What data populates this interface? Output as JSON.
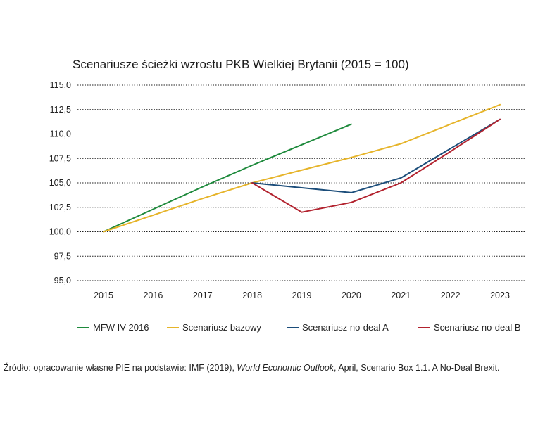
{
  "chart_data": {
    "type": "line",
    "title": "Scenariusze ścieżki wzrostu PKB Wielkiej Brytanii (2015 = 100)",
    "xlabel": "",
    "ylabel": "",
    "categories": [
      "2015",
      "2016",
      "2017",
      "2018",
      "2019",
      "2020",
      "2021",
      "2022",
      "2023"
    ],
    "y_ticks": [
      "115,0",
      "112,5",
      "110,0",
      "107,5",
      "105,0",
      "102,5",
      "100,0",
      "97,5",
      "95,0"
    ],
    "ylim": [
      95,
      115
    ],
    "grid": "horizontal dotted",
    "legend_position": "bottom",
    "series": [
      {
        "name": "MFW IV 2016",
        "color": "#1e8a3c",
        "values": [
          100.0,
          102.3,
          104.6,
          106.8,
          108.9,
          111.0,
          null,
          null,
          null
        ]
      },
      {
        "name": "Scenariusz bazowy",
        "color": "#e6b42a",
        "values": [
          100.0,
          101.7,
          103.4,
          105.0,
          106.3,
          107.6,
          109.0,
          111.0,
          113.0
        ]
      },
      {
        "name": "Scenariusz no-deal A",
        "color": "#1b4d7a",
        "values": [
          null,
          null,
          null,
          105.0,
          104.5,
          104.0,
          105.5,
          108.5,
          111.5
        ]
      },
      {
        "name": "Scenariusz no-deal B",
        "color": "#b2222e",
        "values": [
          null,
          null,
          null,
          105.0,
          102.0,
          103.0,
          105.0,
          108.2,
          111.5
        ]
      }
    ]
  },
  "source": {
    "prefix": "Źródło: opracowanie własne PIE na podstawie: IMF (2019), ",
    "italic": "World Economic Outlook",
    "suffix": ", April, Scenario Box 1.1. A No-Deal Brexit."
  }
}
